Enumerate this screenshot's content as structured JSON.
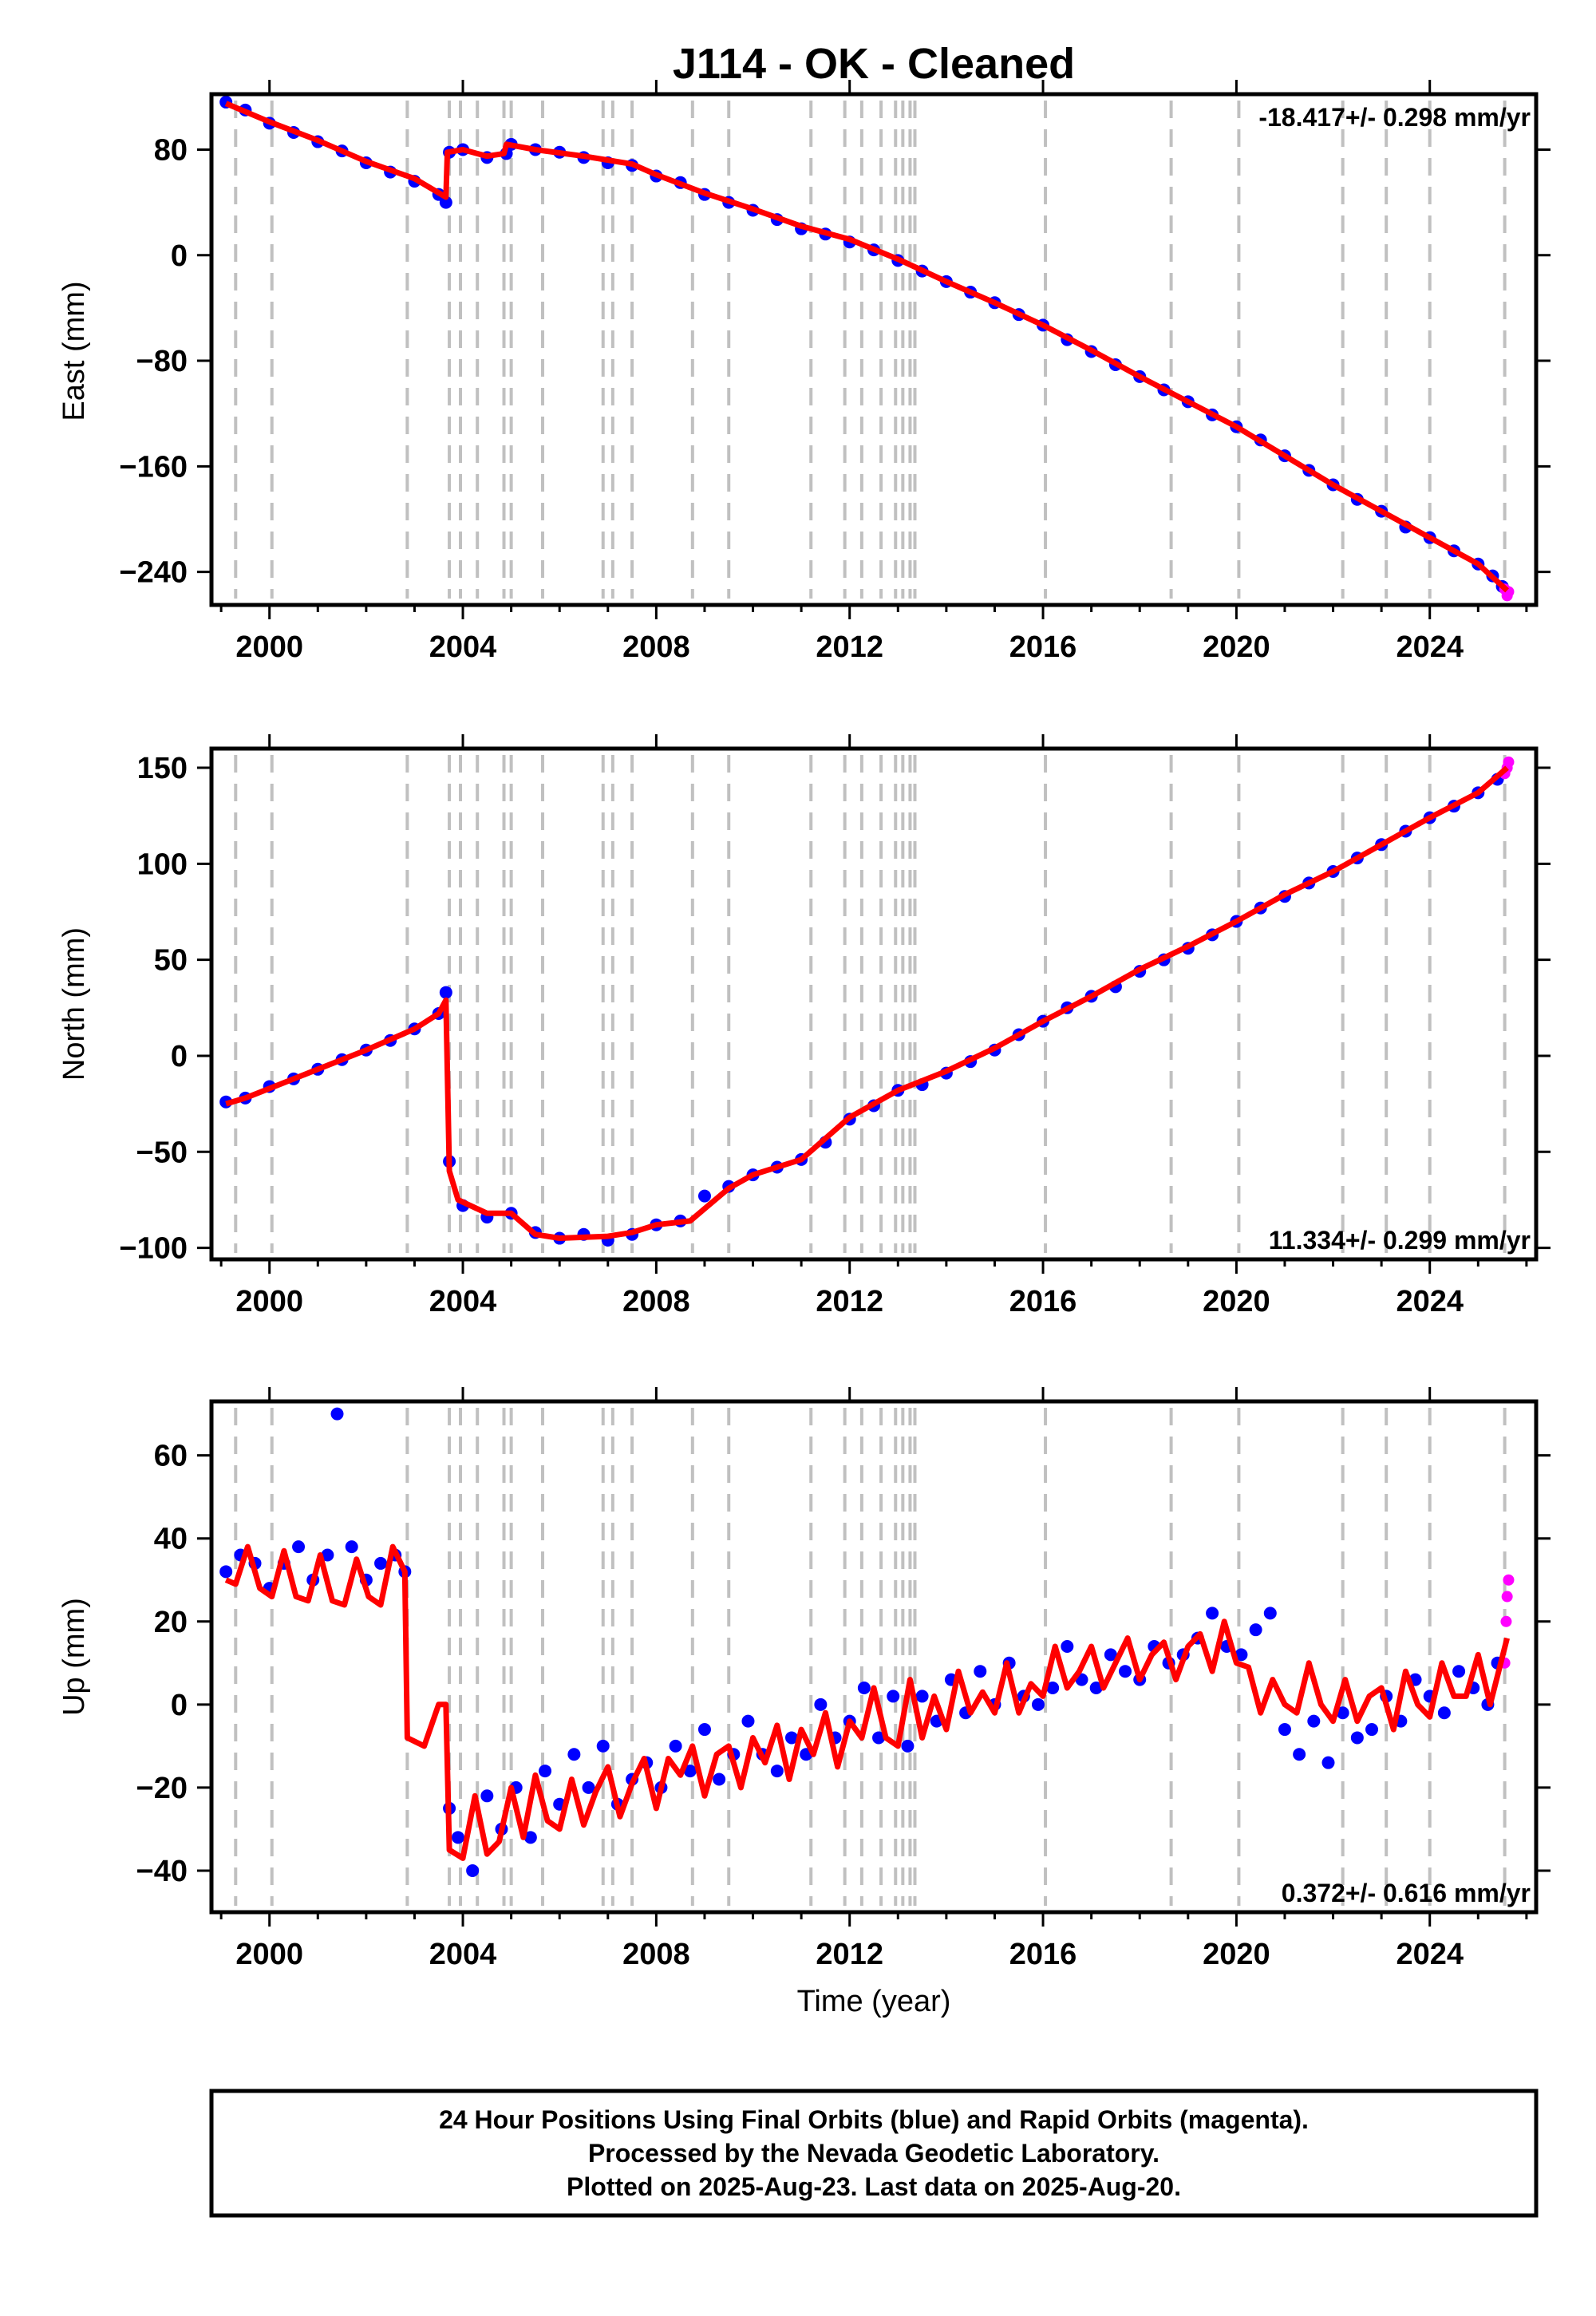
{
  "figure": {
    "title": "J114  - OK - Cleaned",
    "xlabel": "Time (year)",
    "footer": [
      "24 Hour Positions Using Final Orbits (blue) and Rapid Orbits (magenta).",
      "Processed by the Nevada Geodetic Laboratory.",
      "Plotted on 2025-Aug-23. Last data on 2025-Aug-20."
    ],
    "colors": {
      "final_orbits": "#0000ff",
      "rapid_orbits": "#ff00ff",
      "model": "#ff0000",
      "event_lines": "#c0c0c0",
      "frame": "#000000"
    }
  },
  "chart_data": [
    {
      "type": "scatter",
      "ylabel": "East (mm)",
      "rate_label": "-18.417+/- 0.298 mm/yr",
      "xlim": [
        1998.8,
        2026.2
      ],
      "ylim": [
        -265,
        122
      ],
      "x_ticks": [
        2000,
        2004,
        2008,
        2012,
        2016,
        2020,
        2024
      ],
      "x_tick_labels": [
        "2000",
        "2004",
        "2008",
        "2012",
        "2016",
        "2020",
        "2024"
      ],
      "y_ticks": [
        80,
        0,
        -80,
        -160,
        -240
      ],
      "y_tick_labels": [
        "80",
        "0",
        "−80",
        "−160",
        "−240"
      ],
      "series": [
        {
          "kind": "final_orbits",
          "x": [
            1999.1,
            1999.5,
            2000.0,
            2000.5,
            2001.0,
            2001.5,
            2002.0,
            2002.5,
            2003.0,
            2003.5,
            2003.65,
            2003.72,
            2004.0,
            2004.5,
            2004.9,
            2005.0,
            2005.5,
            2006.0,
            2006.5,
            2007.0,
            2007.5,
            2008.0,
            2008.5,
            2009.0,
            2009.5,
            2010.0,
            2010.5,
            2011.0,
            2011.5,
            2012.0,
            2012.5,
            2013.0,
            2013.5,
            2014.0,
            2014.5,
            2015.0,
            2015.5,
            2016.0,
            2016.5,
            2017.0,
            2017.5,
            2018.0,
            2018.5,
            2019.0,
            2019.5,
            2020.0,
            2020.5,
            2021.0,
            2021.5,
            2022.0,
            2022.5,
            2023.0,
            2023.5,
            2024.0,
            2024.5,
            2025.0,
            2025.3,
            2025.5
          ],
          "y": [
            116,
            110,
            100,
            93,
            86,
            79,
            70,
            63,
            56,
            46,
            40,
            78,
            80,
            74,
            77,
            84,
            80,
            78,
            74,
            70,
            68,
            60,
            55,
            46,
            40,
            34,
            27,
            20,
            16,
            10,
            4,
            -4,
            -12,
            -20,
            -28,
            -36,
            -45,
            -53,
            -64,
            -73,
            -83,
            -92,
            -102,
            -111,
            -121,
            -130,
            -140,
            -152,
            -163,
            -174,
            -185,
            -194,
            -206,
            -214,
            -224,
            -234,
            -243,
            -251
          ]
        },
        {
          "kind": "rapid_orbits",
          "x": [
            2025.55,
            2025.6,
            2025.63
          ],
          "y": [
            -253,
            -258,
            -255
          ]
        },
        {
          "kind": "model",
          "x": [
            1999.1,
            2000.0,
            2001.0,
            2002.0,
            2003.0,
            2003.65,
            2003.68,
            2004.0,
            2004.5,
            2004.85,
            2004.9,
            2005.5,
            2006.5,
            2007.5,
            2008.0,
            2009.0,
            2010.0,
            2011.0,
            2012.0,
            2013.0,
            2014.0,
            2015.0,
            2016.0,
            2017.0,
            2018.0,
            2019.0,
            2020.0,
            2021.0,
            2022.0,
            2023.0,
            2024.0,
            2025.0,
            2025.6
          ],
          "y": [
            115,
            101,
            87,
            71,
            58,
            44,
            78,
            80,
            75,
            77,
            84,
            80,
            75,
            69,
            61,
            47,
            35,
            22,
            12,
            -3,
            -20,
            -36,
            -53,
            -72,
            -92,
            -111,
            -130,
            -152,
            -174,
            -194,
            -214,
            -234,
            -254
          ]
        }
      ],
      "event_lines": [
        1999.3,
        2000.05,
        2002.85,
        2003.72,
        2003.95,
        2004.3,
        2004.85,
        2005.0,
        2005.65,
        2006.9,
        2007.1,
        2007.5,
        2008.75,
        2009.5,
        2011.2,
        2011.9,
        2012.25,
        2012.65,
        2012.95,
        2013.1,
        2013.25,
        2013.35,
        2016.05,
        2018.65,
        2020.05,
        2022.2,
        2023.1,
        2024.0,
        2025.55
      ]
    },
    {
      "type": "scatter",
      "ylabel": "North (mm)",
      "rate_label": "11.334+/- 0.299 mm/yr",
      "xlim": [
        1998.8,
        2026.2
      ],
      "ylim": [
        -106,
        160
      ],
      "x_ticks": [
        2000,
        2004,
        2008,
        2012,
        2016,
        2020,
        2024
      ],
      "x_tick_labels": [
        "2000",
        "2004",
        "2008",
        "2012",
        "2016",
        "2020",
        "2024"
      ],
      "y_ticks": [
        150,
        100,
        50,
        0,
        -50,
        -100
      ],
      "y_tick_labels": [
        "150",
        "100",
        "50",
        "0",
        "−50",
        "−100"
      ],
      "series": [
        {
          "kind": "final_orbits",
          "x": [
            1999.1,
            1999.5,
            2000.0,
            2000.5,
            2001.0,
            2001.5,
            2002.0,
            2002.5,
            2003.0,
            2003.5,
            2003.65,
            2003.72,
            2004.0,
            2004.5,
            2005.0,
            2005.5,
            2006.0,
            2006.5,
            2007.0,
            2007.5,
            2008.0,
            2008.5,
            2009.0,
            2009.5,
            2010.0,
            2010.5,
            2011.0,
            2011.5,
            2012.0,
            2012.5,
            2013.0,
            2013.5,
            2014.0,
            2014.5,
            2015.0,
            2015.5,
            2016.0,
            2016.5,
            2017.0,
            2017.5,
            2018.0,
            2018.5,
            2019.0,
            2019.5,
            2020.0,
            2020.5,
            2021.0,
            2021.5,
            2022.0,
            2022.5,
            2023.0,
            2023.5,
            2024.0,
            2024.5,
            2025.0,
            2025.4
          ],
          "y": [
            -24,
            -22,
            -16,
            -12,
            -7,
            -2,
            3,
            8,
            14,
            22,
            33,
            -55,
            -78,
            -84,
            -82,
            -92,
            -95,
            -93,
            -96,
            -93,
            -88,
            -86,
            -73,
            -68,
            -62,
            -58,
            -54,
            -45,
            -33,
            -26,
            -18,
            -15,
            -9,
            -3,
            3,
            11,
            18,
            25,
            31,
            36,
            44,
            50,
            56,
            63,
            70,
            77,
            83,
            90,
            96,
            103,
            110,
            117,
            124,
            130,
            137,
            144
          ]
        },
        {
          "kind": "rapid_orbits",
          "x": [
            2025.55,
            2025.6,
            2025.63
          ],
          "y": [
            147,
            150,
            153
          ]
        },
        {
          "kind": "model",
          "x": [
            1999.1,
            1999.5,
            2000.0,
            2001.0,
            2002.0,
            2003.0,
            2003.5,
            2003.65,
            2003.72,
            2003.9,
            2004.5,
            2005.0,
            2005.5,
            2006.0,
            2007.0,
            2007.5,
            2008.0,
            2008.7,
            2009.5,
            2010.0,
            2011.0,
            2012.0,
            2013.0,
            2014.0,
            2015.0,
            2016.0,
            2017.0,
            2018.0,
            2019.0,
            2020.0,
            2021.0,
            2022.0,
            2023.0,
            2024.0,
            2025.0,
            2025.6
          ],
          "y": [
            -25,
            -22,
            -17,
            -7,
            3,
            14,
            22,
            29,
            -60,
            -75,
            -82,
            -82,
            -93,
            -95,
            -94,
            -92,
            -88,
            -86,
            -69,
            -62,
            -54,
            -32,
            -18,
            -8,
            4,
            18,
            31,
            45,
            57,
            70,
            84,
            96,
            110,
            124,
            137,
            150
          ]
        }
      ],
      "event_lines": [
        1999.3,
        2000.05,
        2002.85,
        2003.72,
        2003.95,
        2004.3,
        2004.85,
        2005.0,
        2005.65,
        2006.9,
        2007.1,
        2007.5,
        2008.75,
        2009.5,
        2011.2,
        2011.9,
        2012.25,
        2012.65,
        2012.95,
        2013.1,
        2013.25,
        2013.35,
        2016.05,
        2018.65,
        2020.05,
        2022.2,
        2023.1,
        2024.0,
        2025.55
      ]
    },
    {
      "type": "scatter",
      "ylabel": "Up (mm)",
      "rate_label": "0.372+/- 0.616 mm/yr",
      "xlim": [
        1998.8,
        2026.2
      ],
      "ylim": [
        -50,
        73
      ],
      "x_ticks": [
        2000,
        2004,
        2008,
        2012,
        2016,
        2020,
        2024
      ],
      "x_tick_labels": [
        "2000",
        "2004",
        "2008",
        "2012",
        "2016",
        "2020",
        "2024"
      ],
      "y_ticks": [
        60,
        40,
        20,
        0,
        -20,
        -40
      ],
      "y_tick_labels": [
        "60",
        "40",
        "20",
        "0",
        "−20",
        "−40"
      ],
      "series": [
        {
          "kind": "final_orbits",
          "x": [
            1999.1,
            1999.4,
            1999.7,
            2000.0,
            2000.3,
            2000.6,
            2000.9,
            2001.2,
            2001.4,
            2001.7,
            2002.0,
            2002.3,
            2002.6,
            2002.8,
            2003.72,
            2003.9,
            2004.2,
            2004.5,
            2004.8,
            2005.1,
            2005.4,
            2005.7,
            2006.0,
            2006.3,
            2006.6,
            2006.9,
            2007.2,
            2007.5,
            2007.8,
            2008.1,
            2008.4,
            2008.7,
            2009.0,
            2009.3,
            2009.6,
            2009.9,
            2010.2,
            2010.5,
            2010.8,
            2011.1,
            2011.4,
            2011.7,
            2012.0,
            2012.3,
            2012.6,
            2012.9,
            2013.2,
            2013.5,
            2013.8,
            2014.1,
            2014.4,
            2014.7,
            2015.0,
            2015.3,
            2015.6,
            2015.9,
            2016.2,
            2016.5,
            2016.8,
            2017.1,
            2017.4,
            2017.7,
            2018.0,
            2018.3,
            2018.6,
            2018.9,
            2019.2,
            2019.5,
            2019.8,
            2020.1,
            2020.4,
            2020.7,
            2021.0,
            2021.3,
            2021.6,
            2021.9,
            2022.2,
            2022.5,
            2022.8,
            2023.1,
            2023.4,
            2023.7,
            2024.0,
            2024.3,
            2024.6,
            2024.9,
            2025.2,
            2025.4
          ],
          "y": [
            32,
            36,
            34,
            28,
            34,
            38,
            30,
            36,
            70,
            38,
            30,
            34,
            36,
            32,
            -25,
            -32,
            -40,
            -22,
            -30,
            -20,
            -32,
            -16,
            -24,
            -12,
            -20,
            -10,
            -24,
            -18,
            -14,
            -20,
            -10,
            -16,
            -6,
            -18,
            -12,
            -4,
            -12,
            -16,
            -8,
            -12,
            0,
            -8,
            -4,
            4,
            -8,
            2,
            -10,
            2,
            -4,
            6,
            -2,
            8,
            0,
            10,
            2,
            0,
            4,
            14,
            6,
            4,
            12,
            8,
            6,
            14,
            10,
            12,
            16,
            22,
            14,
            12,
            18,
            22,
            -6,
            -12,
            -4,
            -14,
            -2,
            -8,
            -6,
            2,
            -4,
            6,
            2,
            -2,
            8,
            4,
            0,
            10
          ]
        },
        {
          "kind": "rapid_orbits",
          "x": [
            2025.55,
            2025.58,
            2025.6,
            2025.63
          ],
          "y": [
            10,
            20,
            26,
            30
          ]
        },
        {
          "kind": "model",
          "x": [
            1999.1,
            1999.3,
            1999.55,
            1999.8,
            2000.05,
            2000.3,
            2000.55,
            2000.8,
            2001.05,
            2001.3,
            2001.55,
            2001.8,
            2002.05,
            2002.3,
            2002.55,
            2002.8,
            2002.85,
            2003.2,
            2003.5,
            2003.65,
            2003.72,
            2004.0,
            2004.25,
            2004.5,
            2004.75,
            2005.0,
            2005.25,
            2005.5,
            2005.75,
            2006.0,
            2006.25,
            2006.5,
            2006.75,
            2007.0,
            2007.25,
            2007.5,
            2007.75,
            2008.0,
            2008.25,
            2008.5,
            2008.75,
            2009.0,
            2009.25,
            2009.5,
            2009.75,
            2010.0,
            2010.25,
            2010.5,
            2010.75,
            2011.0,
            2011.25,
            2011.5,
            2011.75,
            2012.0,
            2012.25,
            2012.5,
            2012.75,
            2013.0,
            2013.25,
            2013.5,
            2013.75,
            2014.0,
            2014.25,
            2014.5,
            2014.75,
            2015.0,
            2015.25,
            2015.5,
            2015.75,
            2016.0,
            2016.25,
            2016.5,
            2016.75,
            2017.0,
            2017.25,
            2017.5,
            2017.75,
            2018.0,
            2018.25,
            2018.5,
            2018.75,
            2019.0,
            2019.25,
            2019.5,
            2019.75,
            2020.0,
            2020.25,
            2020.5,
            2020.75,
            2021.0,
            2021.25,
            2021.5,
            2021.75,
            2022.0,
            2022.25,
            2022.5,
            2022.75,
            2023.0,
            2023.25,
            2023.5,
            2023.75,
            2024.0,
            2024.25,
            2024.5,
            2024.75,
            2025.0,
            2025.25,
            2025.6
          ],
          "y": [
            30,
            29,
            38,
            28,
            26,
            37,
            26,
            25,
            36,
            25,
            24,
            35,
            26,
            24,
            38,
            32,
            -8,
            -10,
            0,
            0,
            -35,
            -37,
            -22,
            -36,
            -33,
            -20,
            -32,
            -17,
            -28,
            -30,
            -18,
            -29,
            -21,
            -15,
            -27,
            -19,
            -13,
            -25,
            -13,
            -17,
            -10,
            -22,
            -12,
            -10,
            -20,
            -8,
            -14,
            -5,
            -18,
            -6,
            -12,
            -2,
            -15,
            -4,
            -8,
            4,
            -8,
            -10,
            6,
            -8,
            2,
            -6,
            8,
            -2,
            3,
            -2,
            10,
            -2,
            5,
            2,
            14,
            4,
            8,
            14,
            4,
            10,
            16,
            6,
            12,
            15,
            6,
            14,
            17,
            8,
            20,
            10,
            9,
            -2,
            6,
            0,
            -2,
            10,
            0,
            -4,
            6,
            -4,
            2,
            4,
            -6,
            8,
            0,
            -3,
            10,
            2,
            2,
            12,
            0,
            16
          ]
        }
      ],
      "event_lines": [
        1999.3,
        2000.05,
        2002.85,
        2003.72,
        2003.95,
        2004.3,
        2004.85,
        2005.0,
        2005.65,
        2006.9,
        2007.1,
        2007.5,
        2008.75,
        2009.5,
        2011.2,
        2011.9,
        2012.25,
        2012.65,
        2012.95,
        2013.1,
        2013.25,
        2013.35,
        2016.05,
        2018.65,
        2020.05,
        2022.2,
        2023.1,
        2024.0,
        2025.55
      ]
    }
  ]
}
